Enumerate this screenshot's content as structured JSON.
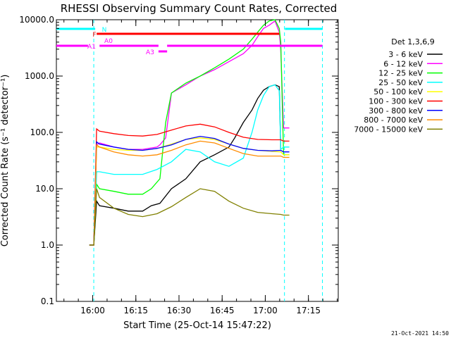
{
  "chart_data": {
    "type": "line",
    "title": "RHESSI Observing Summary Count Rates, Corrected",
    "xlabel": "Start Time (25-Oct-14 15:47:22)",
    "ylabel": "Corrected Count Rate (s⁻¹ detector⁻¹)",
    "y_scale": "log",
    "ylim": [
      0.1,
      10000
    ],
    "x_unit": "minutes after 15:47:22",
    "xlim": [
      0,
      98
    ],
    "x_ticks": [
      {
        "label": "16:00",
        "value": 12.63
      },
      {
        "label": "16:15",
        "value": 27.63
      },
      {
        "label": "16:30",
        "value": 42.63
      },
      {
        "label": "16:45",
        "value": 57.63
      },
      {
        "label": "17:00",
        "value": 72.63
      },
      {
        "label": "17:15",
        "value": 87.63
      }
    ],
    "y_ticks": [
      {
        "label": "10000.0",
        "value": 10000
      },
      {
        "label": "1000.0",
        "value": 1000
      },
      {
        "label": "100.0",
        "value": 100
      },
      {
        "label": "10.0",
        "value": 10
      },
      {
        "label": "1.0",
        "value": 1
      },
      {
        "label": "0.1",
        "value": 0.1
      }
    ],
    "legend_title": "Det 1,3,6,9",
    "legend_position": "right",
    "series": [
      {
        "name": "3 - 6 keV",
        "color": "#000000",
        "x": [
          11.5,
          13,
          14,
          15,
          20,
          25,
          30,
          33,
          36,
          40,
          45,
          50,
          55,
          60,
          62,
          65,
          68,
          70,
          72,
          74,
          76,
          77.5,
          78
        ],
        "y": [
          1,
          1,
          6,
          5,
          4.5,
          4,
          4,
          5,
          5.5,
          10,
          15,
          30,
          40,
          55,
          80,
          150,
          250,
          400,
          560,
          650,
          700,
          650,
          50
        ]
      },
      {
        "name": "6 - 12 keV",
        "color": "#ff00ff",
        "x": [
          11.5,
          13,
          14,
          15,
          20,
          25,
          30,
          35,
          36,
          38,
          40,
          45,
          50,
          55,
          60,
          65,
          68,
          70,
          72,
          74,
          76,
          77.5,
          78,
          79,
          81
        ],
        "y": [
          1,
          1,
          60,
          65,
          55,
          50,
          50,
          55,
          60,
          80,
          500,
          700,
          1000,
          1300,
          1800,
          2500,
          3500,
          5000,
          7000,
          8000,
          9500,
          6000,
          3000,
          120,
          120
        ]
      },
      {
        "name": "12 - 25 keV",
        "color": "#00ff00",
        "x": [
          11.5,
          13,
          14,
          15,
          20,
          25,
          30,
          33,
          36,
          38,
          40,
          45,
          50,
          55,
          60,
          65,
          68,
          70,
          72,
          74,
          76,
          77.5,
          78,
          79,
          81
        ],
        "y": [
          1,
          1,
          12,
          10,
          9,
          8,
          8,
          10,
          15,
          150,
          500,
          750,
          1000,
          1400,
          2000,
          3000,
          4500,
          6000,
          8000,
          9500,
          10000,
          7000,
          4000,
          40,
          40
        ]
      },
      {
        "name": "25 - 50 keV",
        "color": "#00ffff",
        "x": [
          11.5,
          13,
          14,
          15,
          20,
          25,
          30,
          35,
          40,
          45,
          50,
          55,
          60,
          65,
          68,
          70,
          72,
          74,
          76,
          77.5,
          78,
          79,
          81
        ],
        "y": [
          1,
          1,
          20,
          20,
          18,
          18,
          18,
          22,
          30,
          50,
          45,
          30,
          25,
          35,
          100,
          250,
          450,
          650,
          700,
          550,
          50,
          55,
          55
        ]
      },
      {
        "name": "50 - 100 keV",
        "color": "#ffff00",
        "x": [
          11.5,
          13,
          14,
          15,
          20,
          25,
          30,
          35,
          40,
          45,
          50,
          55,
          60,
          65,
          70,
          75,
          78,
          79,
          81
        ],
        "y": [
          1,
          1,
          55,
          55,
          50,
          48,
          48,
          52,
          62,
          75,
          80,
          75,
          62,
          52,
          48,
          46,
          45,
          40,
          40
        ]
      },
      {
        "name": "100 - 300 keV",
        "color": "#ff0000",
        "x": [
          11.5,
          13,
          14,
          15,
          20,
          25,
          30,
          35,
          40,
          45,
          50,
          55,
          60,
          65,
          70,
          75,
          78,
          79,
          81
        ],
        "y": [
          1,
          1,
          115,
          105,
          95,
          88,
          86,
          92,
          110,
          130,
          140,
          125,
          100,
          82,
          75,
          74,
          74,
          70,
          70
        ]
      },
      {
        "name": "300 - 800 keV",
        "color": "#0000ff",
        "x": [
          11.5,
          13,
          14,
          15,
          20,
          25,
          30,
          35,
          40,
          45,
          50,
          55,
          60,
          65,
          70,
          75,
          78,
          79,
          81
        ],
        "y": [
          1,
          1,
          68,
          62,
          55,
          50,
          48,
          52,
          60,
          75,
          85,
          78,
          62,
          52,
          48,
          47,
          48,
          45,
          45
        ]
      },
      {
        "name": "800 - 7000 keV",
        "color": "#ff8c00",
        "x": [
          11.5,
          13,
          14,
          15,
          20,
          25,
          30,
          35,
          40,
          45,
          50,
          55,
          60,
          65,
          70,
          75,
          78,
          79,
          81
        ],
        "y": [
          1,
          1,
          60,
          55,
          45,
          40,
          38,
          40,
          48,
          60,
          70,
          65,
          52,
          42,
          38,
          38,
          38,
          36,
          36
        ]
      },
      {
        "name": "7000 - 15000 keV",
        "color": "#808000",
        "x": [
          11.5,
          13,
          14,
          15,
          20,
          25,
          30,
          35,
          40,
          45,
          50,
          55,
          60,
          65,
          70,
          75,
          78,
          79,
          81
        ],
        "y": [
          1,
          1,
          10,
          7,
          4.5,
          3.5,
          3.2,
          3.6,
          4.8,
          7,
          10,
          9,
          6,
          4.5,
          3.8,
          3.6,
          3.5,
          3.4,
          3.4
        ]
      }
    ],
    "attenuator_bars": [
      {
        "label": "N",
        "color": "#00ffff",
        "segments": [
          [
            0,
            13.5
          ],
          [
            79.5,
            92.5
          ]
        ]
      },
      {
        "label": "F",
        "color": "#ff0000",
        "segments": [
          [
            14,
            77.5
          ]
        ]
      },
      {
        "label": "A0",
        "color": "#ff00ff",
        "segments": []
      },
      {
        "label": "A1",
        "color": "#ff00ff",
        "segments": [
          [
            0,
            11
          ],
          [
            15,
            35.5
          ],
          [
            38.5,
            92.5
          ]
        ]
      },
      {
        "label": "A3",
        "color": "#ff00ff",
        "segments": [
          [
            35.5,
            38.5
          ]
        ]
      }
    ],
    "vertical_markers": [
      {
        "x": 13.0,
        "color": "#00ffff"
      },
      {
        "x": 79.3,
        "color": "#00ffff"
      },
      {
        "x": 92.5,
        "color": "#00ffff"
      }
    ],
    "timestamp": "21-Oct-2021 14:50"
  }
}
